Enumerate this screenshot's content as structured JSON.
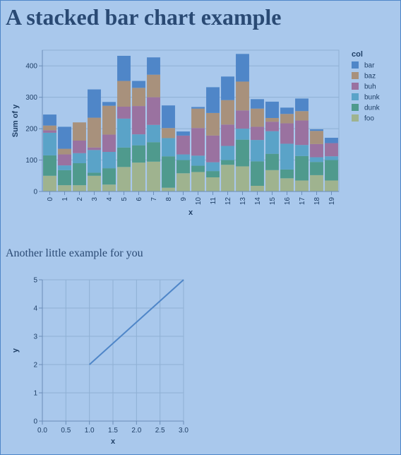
{
  "page": {
    "title": "A stacked bar chart example",
    "subtitle": "Another little example for you",
    "background": "#a9c8ec"
  },
  "chart_data": [
    {
      "type": "bar",
      "stacked": true,
      "xlabel": "x",
      "ylabel": "Sum of y",
      "ylim": [
        0,
        450
      ],
      "yticks": [
        0,
        100,
        200,
        300,
        400
      ],
      "grid": true,
      "legend_title": "col",
      "legend_position": "right",
      "categories": [
        "0",
        "1",
        "2",
        "3",
        "4",
        "5",
        "6",
        "7",
        "8",
        "9",
        "10",
        "11",
        "12",
        "13",
        "14",
        "15",
        "16",
        "17",
        "18",
        "19"
      ],
      "series": [
        {
          "name": "foo",
          "color": "#9fb38f",
          "values": [
            50,
            20,
            20,
            50,
            22,
            78,
            92,
            95,
            12,
            58,
            62,
            45,
            85,
            80,
            18,
            68,
            42,
            35,
            52,
            35
          ]
        },
        {
          "name": "dunk",
          "color": "#4f9a8d",
          "values": [
            65,
            48,
            70,
            10,
            52,
            62,
            55,
            62,
            100,
            42,
            20,
            20,
            15,
            85,
            78,
            52,
            28,
            78,
            42,
            65
          ]
        },
        {
          "name": "bunk",
          "color": "#5aa3c8",
          "values": [
            72,
            15,
            32,
            72,
            52,
            92,
            35,
            55,
            58,
            18,
            32,
            28,
            45,
            35,
            68,
            72,
            82,
            35,
            15,
            12
          ]
        },
        {
          "name": "buh",
          "color": "#9a72a0",
          "values": [
            8,
            35,
            40,
            8,
            55,
            38,
            90,
            88,
            0,
            60,
            88,
            85,
            68,
            58,
            42,
            30,
            65,
            78,
            42,
            42
          ]
        },
        {
          "name": "baz",
          "color": "#a8917c",
          "values": [
            15,
            18,
            58,
            95,
            92,
            82,
            58,
            72,
            32,
            0,
            62,
            72,
            78,
            92,
            58,
            12,
            30,
            30,
            42,
            0
          ]
        },
        {
          "name": "bar",
          "color": "#4f86c8",
          "values": [
            35,
            70,
            0,
            90,
            12,
            80,
            22,
            55,
            72,
            13,
            5,
            82,
            75,
            88,
            30,
            52,
            20,
            40,
            5,
            17
          ]
        }
      ]
    },
    {
      "type": "line",
      "xlabel": "x",
      "ylabel": "y",
      "xlim": [
        0,
        3
      ],
      "ylim": [
        0,
        5
      ],
      "xticks": [
        "0.0",
        "0.5",
        "1.0",
        "1.5",
        "2.0",
        "2.5",
        "3.0"
      ],
      "yticks": [
        0,
        1,
        2,
        3,
        4,
        5
      ],
      "grid": true,
      "color": "#4f86c8",
      "x": [
        1,
        3
      ],
      "y": [
        2,
        5
      ]
    }
  ]
}
